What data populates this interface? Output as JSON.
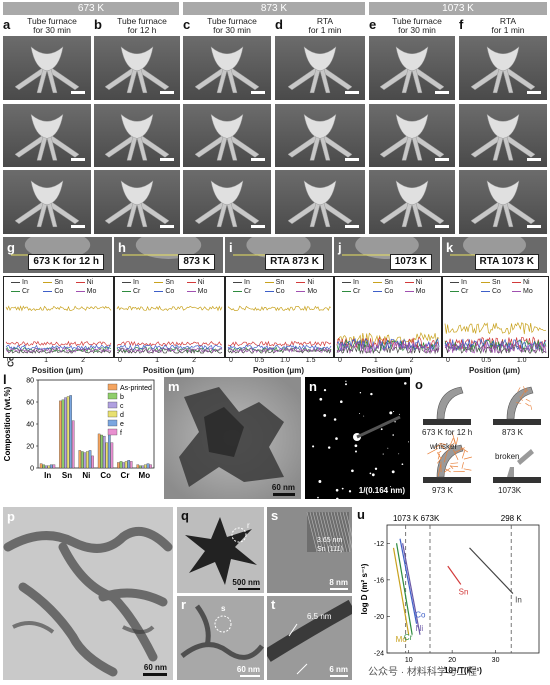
{
  "temps": {
    "t673": "673 K",
    "t873": "873 K",
    "t1073": "1073 K"
  },
  "labels": {
    "a": "a",
    "b": "b",
    "c": "c",
    "d": "d",
    "e": "e",
    "f": "f",
    "g": "g",
    "h": "h",
    "i": "i",
    "j": "j",
    "k": "k",
    "l": "l",
    "m": "m",
    "n": "n",
    "o": "o",
    "p": "p",
    "q": "q",
    "r": "r",
    "s": "s",
    "t": "t",
    "u": "u"
  },
  "columns": [
    {
      "l1": "Tube furnace",
      "l2": "for 30 min"
    },
    {
      "l1": "Tube furnace",
      "l2": "for 12 h"
    },
    {
      "l1": "Tube furnace",
      "l2": "for 30 min"
    },
    {
      "l1": "RTA",
      "l2": "for 1 min"
    },
    {
      "l1": "Tube furnace",
      "l2": "for 30 min"
    },
    {
      "l1": "RTA",
      "l2": "for 1 min"
    }
  ],
  "strips": [
    "673 K for 12 h",
    "873 K",
    "RTA 873 K",
    "1073 K",
    "RTA 1073 K"
  ],
  "eds": {
    "ylabel": "Composition (wt.%)",
    "xlabel": "Position (μm)",
    "elements": [
      "In",
      "Sn",
      "Ni",
      "Cr",
      "Co",
      "Mo"
    ],
    "colors": {
      "In": "#444444",
      "Sn": "#c8a21e",
      "Ni": "#d23a3a",
      "Cr": "#2e8b3e",
      "Co": "#3e5fc8",
      "Mo": "#a050b0"
    },
    "yticks": [
      "0",
      "20",
      "40",
      "60",
      "80",
      "100"
    ],
    "xticks": [
      [
        "0",
        "1",
        "2"
      ],
      [
        "0",
        "1",
        "2"
      ],
      [
        "0",
        "0.5",
        "1.0",
        "1.5"
      ],
      [
        "0",
        "1",
        "2"
      ],
      [
        "0",
        "0.5",
        "1.0"
      ]
    ]
  },
  "chart_data": [
    {
      "type": "bar",
      "panel": "l",
      "ylabel": "Composition (wt.%)",
      "ylim": [
        0,
        80
      ],
      "yticks": [
        0,
        20,
        40,
        60,
        80
      ],
      "categories": [
        "In",
        "Sn",
        "Ni",
        "Co",
        "Cr",
        "Mo"
      ],
      "legend_position": "top-right",
      "series": [
        {
          "name": "As-printed",
          "color": "#f4a460",
          "values": [
            4,
            61,
            16,
            31,
            5,
            3
          ]
        },
        {
          "name": "b",
          "color": "#8fce6a",
          "values": [
            3,
            62,
            15,
            30,
            6,
            2
          ]
        },
        {
          "name": "c",
          "color": "#b0a0e0",
          "values": [
            2,
            64,
            14,
            29,
            5,
            2
          ]
        },
        {
          "name": "d",
          "color": "#e8e070",
          "values": [
            2,
            65,
            15,
            23,
            6,
            3
          ]
        },
        {
          "name": "e",
          "color": "#7aa6e0",
          "values": [
            3,
            66,
            16,
            34,
            7,
            4
          ]
        },
        {
          "name": "f",
          "color": "#e890d0",
          "values": [
            3,
            43,
            11,
            23,
            6,
            3
          ]
        }
      ]
    },
    {
      "type": "line",
      "panel": "u",
      "xlabel": "10⁴/T(K⁻¹)",
      "ylabel": "log D (m² s⁻¹)",
      "xlim": [
        5,
        40
      ],
      "ylim": [
        -24,
        -10
      ],
      "xticks": [
        10,
        20,
        30
      ],
      "yticks": [
        -24,
        -20,
        -16,
        -12
      ],
      "vlines": [
        {
          "x": 9.3,
          "label": "1073 K"
        },
        {
          "x": 14.9,
          "label": "673K"
        },
        {
          "x": 33.6,
          "label": "298 K"
        }
      ],
      "series": [
        {
          "name": "Mo",
          "color": "#c8a21e",
          "x": [
            6.5,
            10
          ],
          "y": [
            -12.5,
            -22
          ]
        },
        {
          "name": "Cr",
          "color": "#2e8b3e",
          "x": [
            7.2,
            10.8
          ],
          "y": [
            -12,
            -22
          ]
        },
        {
          "name": "Co",
          "color": "#3e5fc8",
          "x": [
            8,
            11.8
          ],
          "y": [
            -11.5,
            -20.8
          ]
        },
        {
          "name": "Ni",
          "color": "#6b58a6",
          "x": [
            8.6,
            12.6
          ],
          "y": [
            -12,
            -22
          ]
        },
        {
          "name": "Sn",
          "color": "#d23a3a",
          "x": [
            19,
            22
          ],
          "y": [
            -14.5,
            -16.5
          ]
        },
        {
          "name": "In",
          "color": "#444444",
          "x": [
            24,
            34
          ],
          "y": [
            -12.5,
            -17.5
          ]
        }
      ]
    }
  ],
  "tem": {
    "m_scale": "60 nm",
    "n_ring": "1/(0.164 nm)",
    "p_scale": "60 nm",
    "q_scale": "500 nm",
    "r_scale": "60 nm",
    "s_d": "3.65 nm",
    "s_plane": "Sn (111)",
    "s_scale": "8 nm",
    "t_width": "6.5 nm",
    "t_scale": "6 nm",
    "q_circle": "r",
    "r_circle": "s"
  },
  "schem": {
    "a": "673 K for 12 h",
    "b": "873 K",
    "c": "973 K",
    "d": "1073K",
    "whisker": "whisker",
    "broken": "broken"
  },
  "watermark": "公众号 · 材料科学与工程"
}
